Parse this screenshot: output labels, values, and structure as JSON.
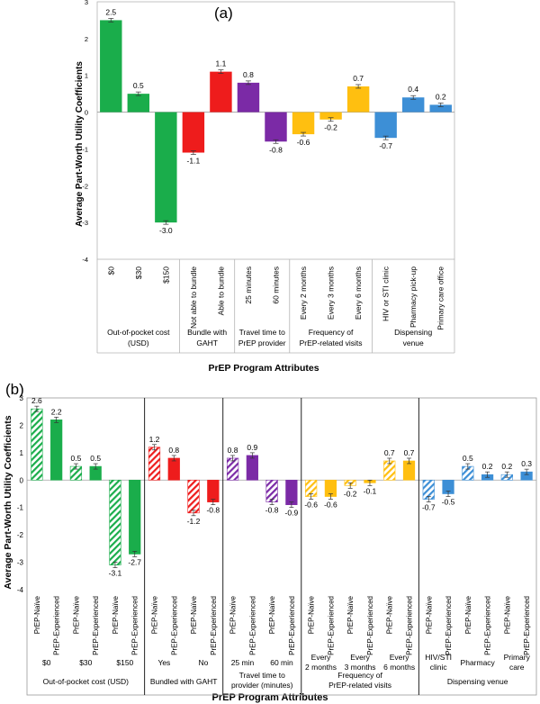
{
  "chart_data": [
    {
      "panel": "(a)",
      "type": "bar",
      "ylabel": "Average  Part-Worth Utility Coefficients",
      "xlabel": "PrEP Program Attributes",
      "ylim": [
        -4,
        3
      ],
      "yticks": [
        "-4",
        "-3",
        "-2",
        "-1",
        "0",
        "1",
        "2",
        "3"
      ],
      "groups": [
        {
          "label": "Out-of-pocket cost (USD)",
          "lines": [
            "Out-of-pocket cost",
            "(USD)"
          ],
          "color": "#1aad4b",
          "bars": [
            {
              "label": "$0",
              "value": 2.5,
              "text": "2.5"
            },
            {
              "label": "$30",
              "value": 0.5,
              "text": "0.5"
            },
            {
              "label": "$150",
              "value": -3.0,
              "text": "-3.0"
            }
          ]
        },
        {
          "label": "Bundle with GAHT",
          "lines": [
            "Bundle with",
            "GAHT"
          ],
          "color": "#ee1c1c",
          "bars": [
            {
              "label": "Not able to bundle",
              "value": -1.1,
              "text": "-1.1"
            },
            {
              "label": "Able to bundle",
              "value": 1.1,
              "text": "1.1"
            }
          ]
        },
        {
          "label": "Travel time to PrEP provider",
          "lines": [
            "Travel time to",
            "PrEP provider"
          ],
          "color": "#7b2aa6",
          "bars": [
            {
              "label": "25 minutes",
              "value": 0.8,
              "text": "0.8"
            },
            {
              "label": "60 minutes",
              "value": -0.8,
              "text": "-0.8"
            }
          ]
        },
        {
          "label": "Frequency of PrEP-related visits",
          "lines": [
            "Frequency of",
            "PrEP-related visits"
          ],
          "color": "#ffbf10",
          "bars": [
            {
              "label": "Every 2 months",
              "value": -0.6,
              "text": "-0.6"
            },
            {
              "label": "Every 3 months",
              "value": -0.2,
              "text": "-0.2"
            },
            {
              "label": "Every 6 months",
              "value": 0.7,
              "text": "0.7"
            }
          ]
        },
        {
          "label": "Dispensing venue",
          "lines": [
            "Dispensing",
            "venue"
          ],
          "color": "#3d8fd6",
          "bars": [
            {
              "label": "HIV or STI clinic",
              "value": -0.7,
              "text": "-0.7"
            },
            {
              "label": "Pharmacy pick-up",
              "value": 0.4,
              "text": "0.4"
            },
            {
              "label": "Primary care office",
              "value": 0.2,
              "text": "0.2"
            }
          ]
        }
      ]
    },
    {
      "panel": "(b)",
      "type": "bar",
      "ylabel": "Average Part-Worth Utility Coefficients",
      "xlabel": "PrEP Program Attributes",
      "ylim": [
        -4,
        3
      ],
      "yticks": [
        "-4",
        "-3",
        "-2",
        "-1",
        "0",
        "1",
        "2",
        "3"
      ],
      "series": [
        "PrEP-Naïve",
        "PrEP-Experienced"
      ],
      "groups": [
        {
          "label": "Out-of-pocket cost (USD)",
          "lines": [
            "Out-of-pocket cost (USD)"
          ],
          "color": "#1aad4b",
          "levels": [
            {
              "label": "$0",
              "lines": [
                "$0"
              ],
              "naive": 2.6,
              "naive_text": "2.6",
              "experienced": 2.2,
              "experienced_text": "2.2"
            },
            {
              "label": "$30",
              "lines": [
                "$30"
              ],
              "naive": 0.5,
              "naive_text": "0.5",
              "experienced": 0.5,
              "experienced_text": "0.5"
            },
            {
              "label": "$150",
              "lines": [
                "$150"
              ],
              "naive": -3.1,
              "naive_text": "-3.1",
              "experienced": -2.7,
              "experienced_text": "-2.7"
            }
          ]
        },
        {
          "label": "Bundled with GAHT",
          "lines": [
            "Bundled with GAHT"
          ],
          "color": "#ee1c1c",
          "levels": [
            {
              "label": "Yes",
              "lines": [
                "Yes"
              ],
              "naive": 1.2,
              "naive_text": "1.2",
              "experienced": 0.8,
              "experienced_text": "0.8"
            },
            {
              "label": "No",
              "lines": [
                "No"
              ],
              "naive": -1.2,
              "naive_text": "-1.2",
              "experienced": -0.8,
              "experienced_text": "-0.8"
            }
          ]
        },
        {
          "label": "Travel time to provider (minutes)",
          "lines": [
            "Travel time to",
            "provider (minutes)"
          ],
          "color": "#7b2aa6",
          "levels": [
            {
              "label": "25 min",
              "lines": [
                "25 min"
              ],
              "naive": 0.8,
              "naive_text": "0.8",
              "experienced": 0.9,
              "experienced_text": "0.9"
            },
            {
              "label": "60 min",
              "lines": [
                "60 min"
              ],
              "naive": -0.8,
              "naive_text": "-0.8",
              "experienced": -0.9,
              "experienced_text": "-0.9"
            }
          ]
        },
        {
          "label": "Frequency of PrEP-related visits",
          "lines": [
            "Frequency of",
            "PrEP-related visits"
          ],
          "color": "#ffbf10",
          "levels": [
            {
              "label": "Every 2 months",
              "lines": [
                "Every",
                "2 months"
              ],
              "naive": -0.6,
              "naive_text": "-0.6",
              "experienced": -0.6,
              "experienced_text": "-0.6"
            },
            {
              "label": "Every 3 months",
              "lines": [
                "Every",
                "3 months"
              ],
              "naive": -0.2,
              "naive_text": "-0.2",
              "experienced": -0.1,
              "experienced_text": "-0.1"
            },
            {
              "label": "Every 6 months",
              "lines": [
                "Every",
                "6 months"
              ],
              "naive": 0.7,
              "naive_text": "0.7",
              "experienced": 0.7,
              "experienced_text": "0.7"
            }
          ]
        },
        {
          "label": "Dispensing venue",
          "lines": [
            "Dispensing venue"
          ],
          "color": "#3d8fd6",
          "levels": [
            {
              "label": "HIV/STI clinic",
              "lines": [
                "HIV/STI",
                "clinic"
              ],
              "naive": -0.7,
              "naive_text": "-0.7",
              "experienced": -0.5,
              "experienced_text": "-0.5"
            },
            {
              "label": "Pharmacy",
              "lines": [
                "Pharmacy"
              ],
              "naive": 0.5,
              "naive_text": "0.5",
              "experienced": 0.2,
              "experienced_text": "0.2"
            },
            {
              "label": "Primary care",
              "lines": [
                "Primary",
                "care"
              ],
              "naive": 0.2,
              "naive_text": "0.2",
              "experienced": 0.3,
              "experienced_text": "0.3"
            }
          ]
        }
      ]
    }
  ]
}
